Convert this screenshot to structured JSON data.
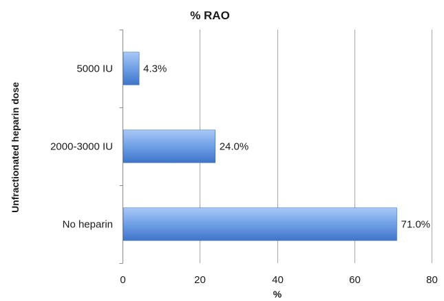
{
  "chart_data": {
    "type": "bar",
    "orientation": "horizontal",
    "title": "% RAO",
    "xlabel": "%",
    "ylabel": "Unfractionated heparin dose",
    "categories": [
      "5000 IU",
      "2000-3000 IU",
      "No heparin"
    ],
    "values": [
      4.3,
      24.0,
      71.0
    ],
    "data_labels": [
      "4.3%",
      "24.0%",
      "71.0%"
    ],
    "xlim": [
      0,
      80
    ],
    "xticks": [
      0,
      20,
      40,
      60,
      80
    ],
    "grid": true,
    "legend": "none",
    "bar_color": "#5b8fe0"
  }
}
